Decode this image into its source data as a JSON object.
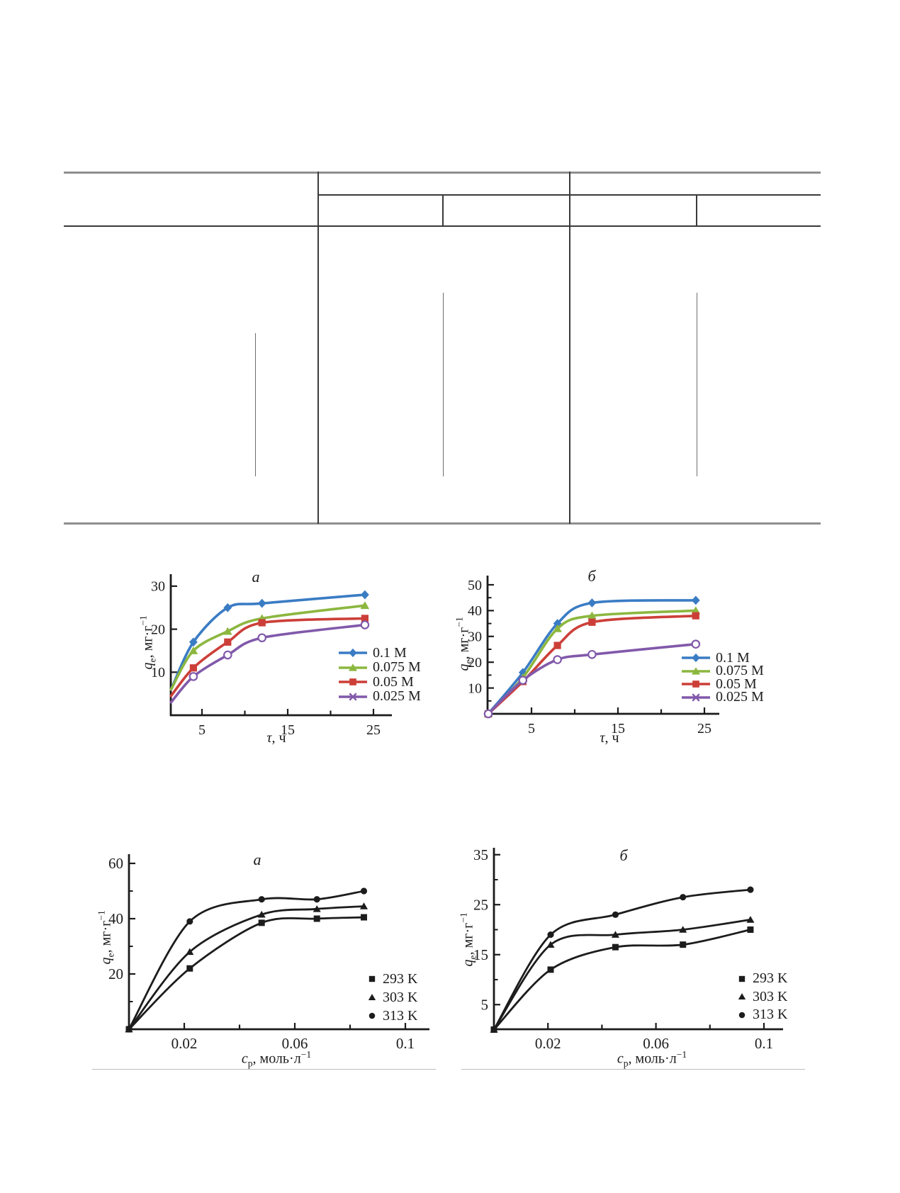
{
  "figure_text": {
    "ylabel_qe": {
      "sym": "q",
      "sub": "e",
      "rest": ", мг·г",
      "sup": "−1"
    },
    "xlabel_tau": {
      "sym": "τ",
      "sub": "",
      "rest": ", ч",
      "sup": ""
    },
    "xlabel_cp": {
      "sym": "c",
      "sub": "p",
      "rest": ", моль·л",
      "sup": "−1"
    }
  },
  "chart_data": [
    {
      "type": "line",
      "title": "a",
      "xlabel": "τ, ч",
      "ylabel": "qe, мг·г−1",
      "xlim": [
        0,
        26
      ],
      "ylim": [
        0,
        33
      ],
      "grid": false,
      "legend_position": "lower right",
      "xticks": {
        "values": [
          5,
          10,
          15,
          20,
          25
        ],
        "labels": [
          "5",
          "",
          "15",
          "",
          "25"
        ]
      },
      "yticks": {
        "major": [
          10,
          20,
          30
        ],
        "labels": [
          "10",
          "20",
          "30"
        ],
        "minor": []
      },
      "series": [
        {
          "name": "0.1 M",
          "color": "#3a7cc4",
          "marker": "diamond",
          "lead": 1,
          "x": [
            1.4,
            4,
            8,
            12,
            24
          ],
          "y": [
            6,
            17,
            25,
            26,
            28
          ]
        },
        {
          "name": "0.075 M",
          "color": "#8cb73f",
          "marker": "triangle",
          "lead": 1,
          "x": [
            1.4,
            4,
            8,
            12,
            24
          ],
          "y": [
            6,
            15,
            19.5,
            22.5,
            25.5
          ]
        },
        {
          "name": "0.05 M",
          "color": "#cc3f38",
          "marker": "square",
          "lead": 1,
          "x": [
            1.4,
            4,
            8,
            12,
            24
          ],
          "y": [
            4.5,
            11,
            17,
            21.5,
            22.5
          ]
        },
        {
          "name": "0.025 M",
          "color": "#8159aa",
          "marker": "circle-open",
          "legend_marker": "x",
          "lead": 1,
          "x": [
            1.4,
            4,
            8,
            12,
            24
          ],
          "y": [
            3,
            9,
            14,
            18,
            21
          ]
        }
      ]
    },
    {
      "type": "line",
      "title": "б",
      "xlabel": "τ, ч",
      "ylabel": "qe, мг·г−1",
      "xlim": [
        0,
        27
      ],
      "ylim": [
        0,
        55
      ],
      "grid": false,
      "legend_position": "lower right",
      "xticks": {
        "values": [
          5,
          10,
          15,
          20,
          25
        ],
        "labels": [
          "5",
          "",
          "15",
          "",
          "25"
        ]
      },
      "yticks": {
        "major": [
          10,
          20,
          30,
          40,
          50
        ],
        "labels": [
          "10",
          "20",
          "30",
          "40",
          "50"
        ],
        "minor": [
          5,
          15,
          25,
          35,
          45
        ]
      },
      "series": [
        {
          "name": "0.1 M",
          "color": "#3a7cc4",
          "marker": "diamond",
          "lead": 0,
          "x": [
            0,
            4,
            8,
            12,
            24
          ],
          "y": [
            0,
            16,
            35,
            43,
            44
          ]
        },
        {
          "name": "0.075 M",
          "color": "#8cb73f",
          "marker": "triangle",
          "lead": 0,
          "x": [
            0,
            4,
            8,
            12,
            24
          ],
          "y": [
            0,
            14,
            33,
            38,
            40
          ]
        },
        {
          "name": "0.05 M",
          "color": "#cc3f38",
          "marker": "square",
          "lead": 0,
          "x": [
            0,
            4,
            8,
            12,
            24
          ],
          "y": [
            0,
            12.5,
            26.5,
            35.5,
            38
          ]
        },
        {
          "name": "0.025 M",
          "color": "#8159aa",
          "marker": "circle-open",
          "legend_marker": "x",
          "lead": 0,
          "x": [
            0,
            4,
            8,
            12,
            24
          ],
          "y": [
            0,
            13,
            21,
            23,
            27
          ]
        }
      ]
    },
    {
      "type": "line",
      "title": "a",
      "xlabel": "cp, моль·л−1",
      "ylabel": "qe, мг·г−1",
      "xlim": [
        0,
        0.109
      ],
      "ylim": [
        0,
        65
      ],
      "grid": false,
      "legend_position": "lower right",
      "xticks": {
        "values": [
          0.02,
          0.04,
          0.06,
          0.08,
          0.1
        ],
        "labels": [
          "0.02",
          "",
          "0.06",
          "",
          "0.1"
        ]
      },
      "yticks": {
        "major": [
          20,
          40,
          60
        ],
        "labels": [
          "20",
          "40",
          "60"
        ],
        "minor": [
          10,
          30,
          50
        ]
      },
      "series": [
        {
          "name": "293 K",
          "color": "#1c1c1c",
          "marker": "square",
          "lead": 0,
          "x": [
            0,
            0.022,
            0.048,
            0.068,
            0.085
          ],
          "y": [
            0,
            22,
            38.5,
            40,
            40.5
          ]
        },
        {
          "name": "303 K",
          "color": "#1c1c1c",
          "marker": "triangle",
          "lead": 0,
          "x": [
            0,
            0.022,
            0.048,
            0.068,
            0.085
          ],
          "y": [
            0,
            28,
            41.5,
            43.5,
            44.5
          ]
        },
        {
          "name": "313 K",
          "color": "#1c1c1c",
          "marker": "circle",
          "lead": 0,
          "x": [
            0,
            0.022,
            0.048,
            0.068,
            0.085
          ],
          "y": [
            0,
            39,
            47,
            47,
            50
          ]
        }
      ]
    },
    {
      "type": "line",
      "title": "б",
      "xlabel": "cp, моль·л−1",
      "ylabel": "qe, мг·г−1",
      "xlim": [
        0,
        0.107
      ],
      "ylim": [
        0,
        38
      ],
      "grid": false,
      "legend_position": "lower right",
      "xticks": {
        "values": [
          0.02,
          0.04,
          0.06,
          0.08,
          0.1
        ],
        "labels": [
          "0.02",
          "",
          "0.06",
          "",
          "0.1"
        ]
      },
      "yticks": {
        "major": [
          5,
          15,
          25,
          35
        ],
        "labels": [
          "5",
          "15",
          "25",
          "35"
        ],
        "minor": [
          10,
          20,
          30
        ]
      },
      "series": [
        {
          "name": "293 K",
          "color": "#1c1c1c",
          "marker": "square",
          "lead": 0,
          "x": [
            0,
            0.021,
            0.045,
            0.07,
            0.095
          ],
          "y": [
            0,
            12,
            16.5,
            17,
            20
          ]
        },
        {
          "name": "303 K",
          "color": "#1c1c1c",
          "marker": "triangle",
          "lead": 0,
          "x": [
            0,
            0.021,
            0.045,
            0.07,
            0.095
          ],
          "y": [
            0,
            17,
            19,
            20,
            22
          ]
        },
        {
          "name": "313 K",
          "color": "#1c1c1c",
          "marker": "circle",
          "lead": 0,
          "x": [
            0,
            0.021,
            0.045,
            0.07,
            0.095
          ],
          "y": [
            0,
            19,
            23,
            26.5,
            28
          ]
        }
      ]
    }
  ]
}
